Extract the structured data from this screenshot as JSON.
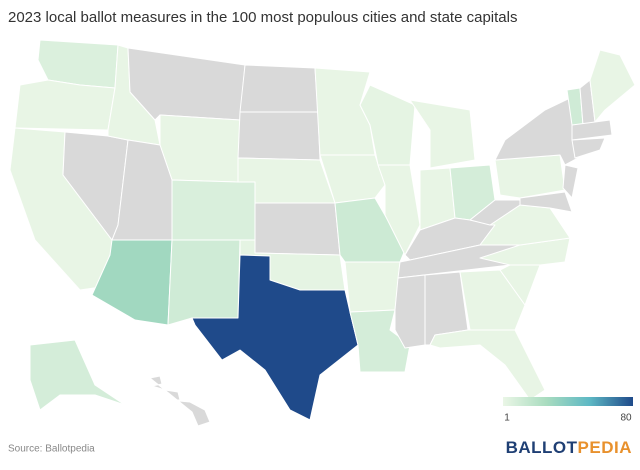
{
  "chart_data": {
    "type": "choropleth",
    "title": "2023 local ballot measures in the 100 most populous cities and state capitals",
    "source": "Source: Ballotpedia",
    "logo": [
      "BALLOT",
      "PEDIA"
    ],
    "values": [
      7,
      2,
      2,
      null,
      2,
      null,
      2,
      null,
      30,
      8,
      12,
      null,
      null,
      2,
      null,
      3,
      80,
      2,
      2,
      13,
      2,
      10,
      3,
      2,
      2,
      2,
      10,
      null,
      null,
      null,
      null,
      2,
      2,
      2,
      2,
      2,
      null,
      2,
      null,
      null,
      null,
      12,
      null,
      2,
      null,
      null,
      10,
      null
    ],
    "legend": {
      "min": 1,
      "max": 80,
      "colors": [
        "#eaf6e6",
        "#a9dcbf",
        "#5db8c4",
        "#1f4a8a"
      ]
    },
    "no_data_color": "#d9d9d9",
    "logo_colors": [
      "#1f3f74",
      "#e8912d"
    ]
  }
}
